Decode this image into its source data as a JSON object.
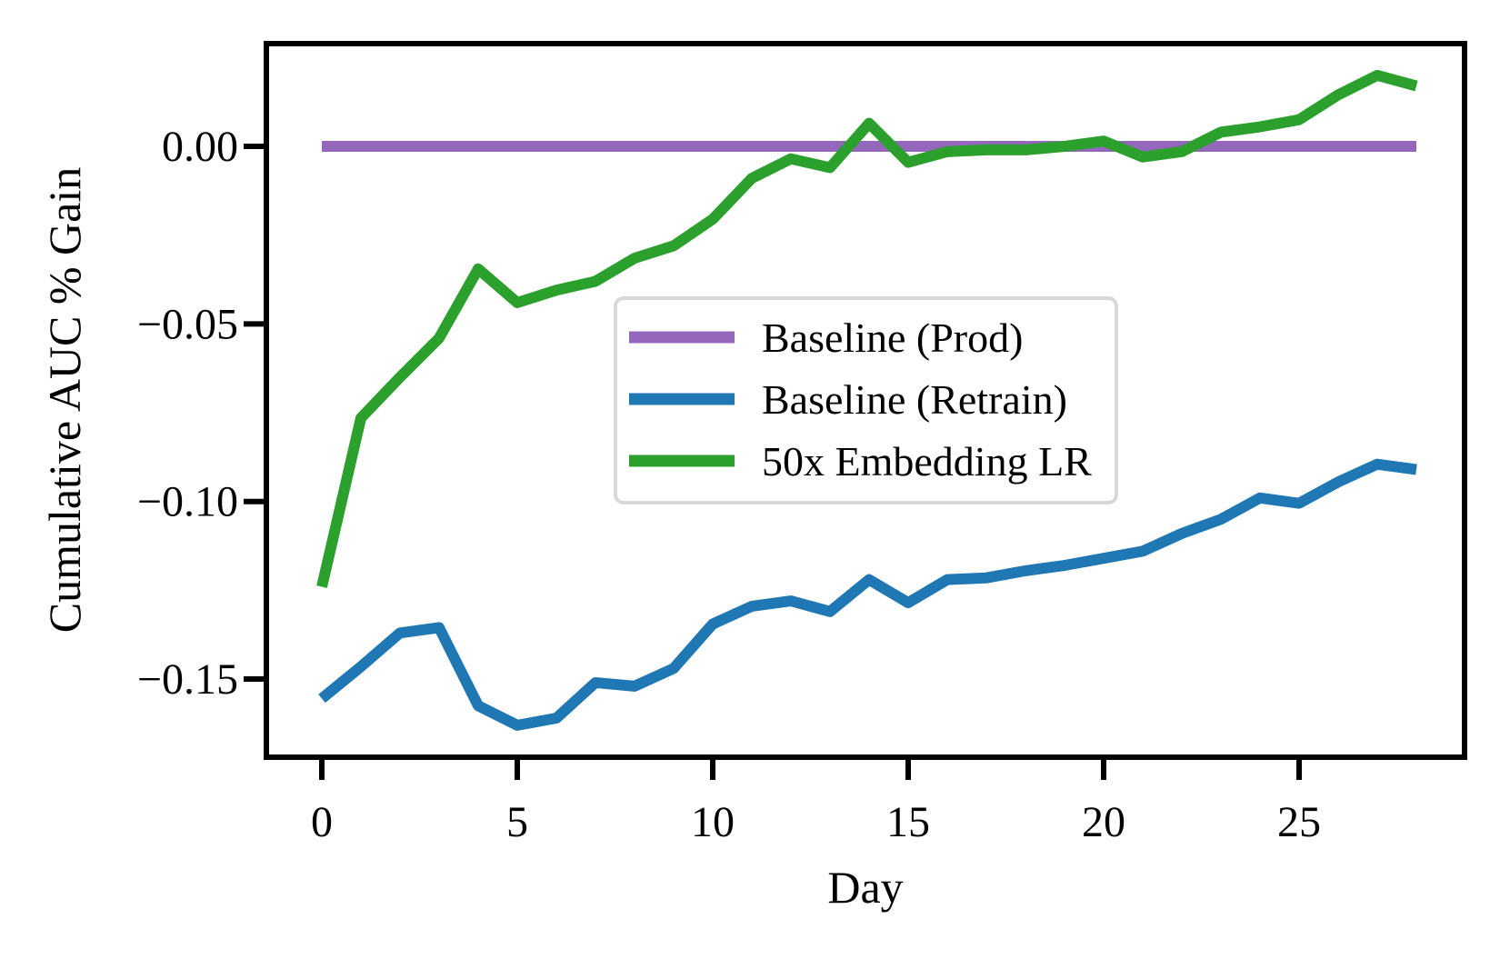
{
  "figure": {
    "xlabel": "Day",
    "ylabel": "Cumulative AUC % Gain",
    "background": "#ffffff",
    "spine_color": "#000000",
    "x_ticks": [
      {
        "value": 0,
        "label": "0"
      },
      {
        "value": 5,
        "label": "5"
      },
      {
        "value": 10,
        "label": "10"
      },
      {
        "value": 15,
        "label": "15"
      },
      {
        "value": 20,
        "label": "20"
      },
      {
        "value": 25,
        "label": "25"
      }
    ],
    "y_ticks": [
      {
        "value": 0.0,
        "label": "0.00"
      },
      {
        "value": -0.05,
        "label": "−0.05"
      },
      {
        "value": -0.1,
        "label": "−0.10"
      },
      {
        "value": -0.15,
        "label": "−0.15"
      }
    ]
  },
  "legend": {
    "border_color": "#d8d8d8",
    "fill_color": "#ffffff",
    "entries": [
      {
        "label": "Baseline (Prod)",
        "color": "#9467bd"
      },
      {
        "label": "Baseline (Retrain)",
        "color": "#1f77b4"
      },
      {
        "label": "50x Embedding LR",
        "color": "#2ca02c"
      }
    ]
  },
  "chart_data": {
    "type": "line",
    "title": "",
    "xlabel": "Day",
    "ylabel": "Cumulative AUC % Gain",
    "xlim": [
      -1.4,
      29.2
    ],
    "ylim": [
      -0.172,
      0.029
    ],
    "grid": false,
    "legend_position": "center",
    "x": [
      0,
      1,
      2,
      3,
      4,
      5,
      6,
      7,
      8,
      9,
      10,
      11,
      12,
      13,
      14,
      15,
      16,
      17,
      18,
      19,
      20,
      21,
      22,
      23,
      24,
      25,
      26,
      27,
      28
    ],
    "series": [
      {
        "name": "Baseline (Prod)",
        "color": "#9467bd",
        "values": [
          0,
          0,
          0,
          0,
          0,
          0,
          0,
          0,
          0,
          0,
          0,
          0,
          0,
          0,
          0,
          0,
          0,
          0,
          0,
          0,
          0,
          0,
          0,
          0,
          0,
          0,
          0,
          0,
          0
        ]
      },
      {
        "name": "Baseline (Retrain)",
        "color": "#1f77b4",
        "values": [
          -0.1555,
          -0.1465,
          -0.137,
          -0.1355,
          -0.1575,
          -0.163,
          -0.161,
          -0.151,
          -0.152,
          -0.147,
          -0.1345,
          -0.1295,
          -0.128,
          -0.131,
          -0.122,
          -0.1285,
          -0.122,
          -0.1215,
          -0.1195,
          -0.118,
          -0.116,
          -0.114,
          -0.109,
          -0.105,
          -0.099,
          -0.1005,
          -0.0945,
          -0.0895,
          -0.091
        ]
      },
      {
        "name": "50x Embedding LR",
        "color": "#2ca02c",
        "values": [
          -0.124,
          -0.0765,
          -0.065,
          -0.054,
          -0.0345,
          -0.044,
          -0.0405,
          -0.038,
          -0.0315,
          -0.028,
          -0.0205,
          -0.009,
          -0.0035,
          -0.006,
          0.0065,
          -0.0045,
          -0.0015,
          -0.001,
          -0.001,
          0.0,
          0.0015,
          -0.003,
          -0.0015,
          0.004,
          0.0055,
          0.0075,
          0.0145,
          0.02,
          0.017
        ]
      }
    ]
  }
}
